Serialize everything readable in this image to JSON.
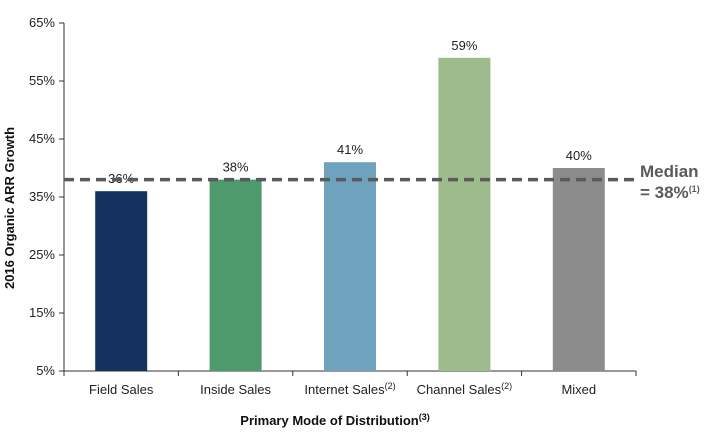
{
  "chart_data": {
    "type": "bar",
    "ylabel": "2016 Organic ARR Growth",
    "xlabel": "Primary  Mode of Distribution",
    "xlabel_note": "(3)",
    "ylim": [
      5,
      65
    ],
    "yticks": [
      5,
      15,
      25,
      35,
      45,
      55,
      65
    ],
    "ytick_labels": [
      "5%",
      "15%",
      "25%",
      "35%",
      "45%",
      "55%",
      "65%"
    ],
    "categories": [
      "Field Sales",
      "Inside Sales",
      "Internet Sales",
      "Channel Sales",
      "Mixed"
    ],
    "category_notes": [
      "",
      "",
      "(2)",
      "(2)",
      ""
    ],
    "values": [
      36,
      38,
      41,
      59,
      40
    ],
    "value_labels": [
      "36%",
      "38%",
      "41%",
      "59%",
      "40%"
    ],
    "colors": [
      "#15325f",
      "#4e9a6c",
      "#6fa3bd",
      "#9dbb8c",
      "#8c8c8c"
    ],
    "median": {
      "value": 38,
      "line_color": "#5a5a5a",
      "label_line1": "Median",
      "label_line2": "= 38%",
      "label_note": "(1)"
    },
    "grid": false
  }
}
